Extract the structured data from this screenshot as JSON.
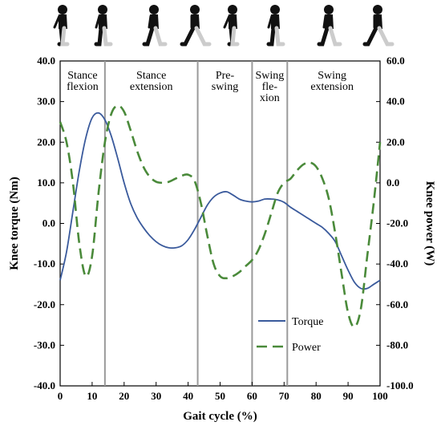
{
  "chart_data": {
    "type": "line",
    "xlabel": "Gait cycle (%)",
    "ylabel_left": "Knee torque (Nm)",
    "ylabel_right": "Knee  power (W)",
    "xlim": [
      0,
      100
    ],
    "ylim_left": [
      -40,
      40
    ],
    "ylim_right": [
      -100,
      60
    ],
    "xticks": [
      0,
      10,
      20,
      30,
      40,
      50,
      60,
      70,
      80,
      90,
      100
    ],
    "xtick_labels": [
      "0",
      "10",
      "20",
      "30",
      "40",
      "50",
      "60",
      "70",
      "80",
      "90",
      "100"
    ],
    "yticks_left": [
      -40,
      -30,
      -20,
      -10,
      0,
      10,
      20,
      30,
      40
    ],
    "ytick_labels_left": [
      "-40.0",
      "-30.0",
      "-20.0",
      "-10.0",
      "0.0",
      "10.0",
      "20.0",
      "30.0",
      "40.0"
    ],
    "yticks_right": [
      -100,
      -80,
      -60,
      -40,
      -20,
      0,
      20,
      40,
      60
    ],
    "ytick_labels_right": [
      "-100.0",
      "-80.0",
      "-60.0",
      "-40.0",
      "-20.0",
      "0.0",
      "20.0",
      "40.0",
      "60.0"
    ],
    "grid": false,
    "legend": "bottom-right",
    "phase_boundaries": [
      14,
      43,
      60,
      71
    ],
    "phases": [
      {
        "label_lines": [
          "Stance",
          "flexion"
        ],
        "center": 7
      },
      {
        "label_lines": [
          "Stance",
          "extension"
        ],
        "center": 28.5
      },
      {
        "label_lines": [
          "Pre-",
          "swing"
        ],
        "center": 51.5
      },
      {
        "label_lines": [
          "Swing",
          "fle-",
          "xion"
        ],
        "center": 65.5
      },
      {
        "label_lines": [
          "Swing",
          "extension"
        ],
        "center": 85
      }
    ],
    "series": [
      {
        "name": "Torque",
        "axis": "left",
        "color": "#3a5a9c",
        "style": "solid",
        "x": [
          0,
          2,
          4,
          6,
          8,
          10,
          12,
          14,
          16,
          18,
          20,
          22,
          24,
          26,
          28,
          30,
          32,
          34,
          36,
          38,
          40,
          42,
          44,
          46,
          48,
          50,
          52,
          54,
          56,
          58,
          60,
          62,
          64,
          66,
          68,
          70,
          72,
          74,
          76,
          78,
          80,
          82,
          84,
          86,
          88,
          90,
          92,
          94,
          96,
          98,
          100
        ],
        "y": [
          -14,
          -7,
          3,
          13,
          21,
          26,
          27.2,
          25.5,
          21.5,
          16,
          10,
          5,
          1.5,
          -1,
          -3,
          -4.5,
          -5.5,
          -6,
          -6,
          -5.5,
          -4,
          -1.5,
          1.5,
          4.5,
          6.5,
          7.5,
          7.8,
          7,
          6,
          5.5,
          5.3,
          5.5,
          6,
          6,
          5.8,
          5.2,
          4,
          3,
          2,
          1,
          0,
          -1,
          -2.5,
          -4.5,
          -8,
          -11.5,
          -14.5,
          -16,
          -16,
          -15,
          -14
        ]
      },
      {
        "name": "Power",
        "axis": "right",
        "color": "#4a8a3a",
        "style": "dashed",
        "x": [
          0,
          2,
          4,
          6,
          8,
          10,
          12,
          14,
          16,
          18,
          20,
          22,
          24,
          26,
          28,
          30,
          32,
          34,
          36,
          38,
          40,
          42,
          44,
          46,
          48,
          50,
          52,
          54,
          56,
          58,
          60,
          62,
          64,
          66,
          68,
          70,
          72,
          74,
          76,
          78,
          80,
          82,
          84,
          86,
          88,
          90,
          92,
          94,
          96,
          98,
          100
        ],
        "y": [
          30,
          20,
          0,
          -30,
          -46,
          -36,
          -5,
          20,
          34,
          38,
          35,
          26,
          16,
          8,
          3,
          0.5,
          0,
          0.5,
          2,
          3.5,
          4,
          1,
          -10,
          -26,
          -40,
          -46,
          -47,
          -46,
          -44,
          -41,
          -38,
          -33,
          -25,
          -15,
          -5,
          0,
          2,
          6,
          9,
          10,
          8,
          2,
          -8,
          -25,
          -45,
          -64,
          -71,
          -62,
          -36,
          -10,
          20
        ]
      }
    ]
  }
}
